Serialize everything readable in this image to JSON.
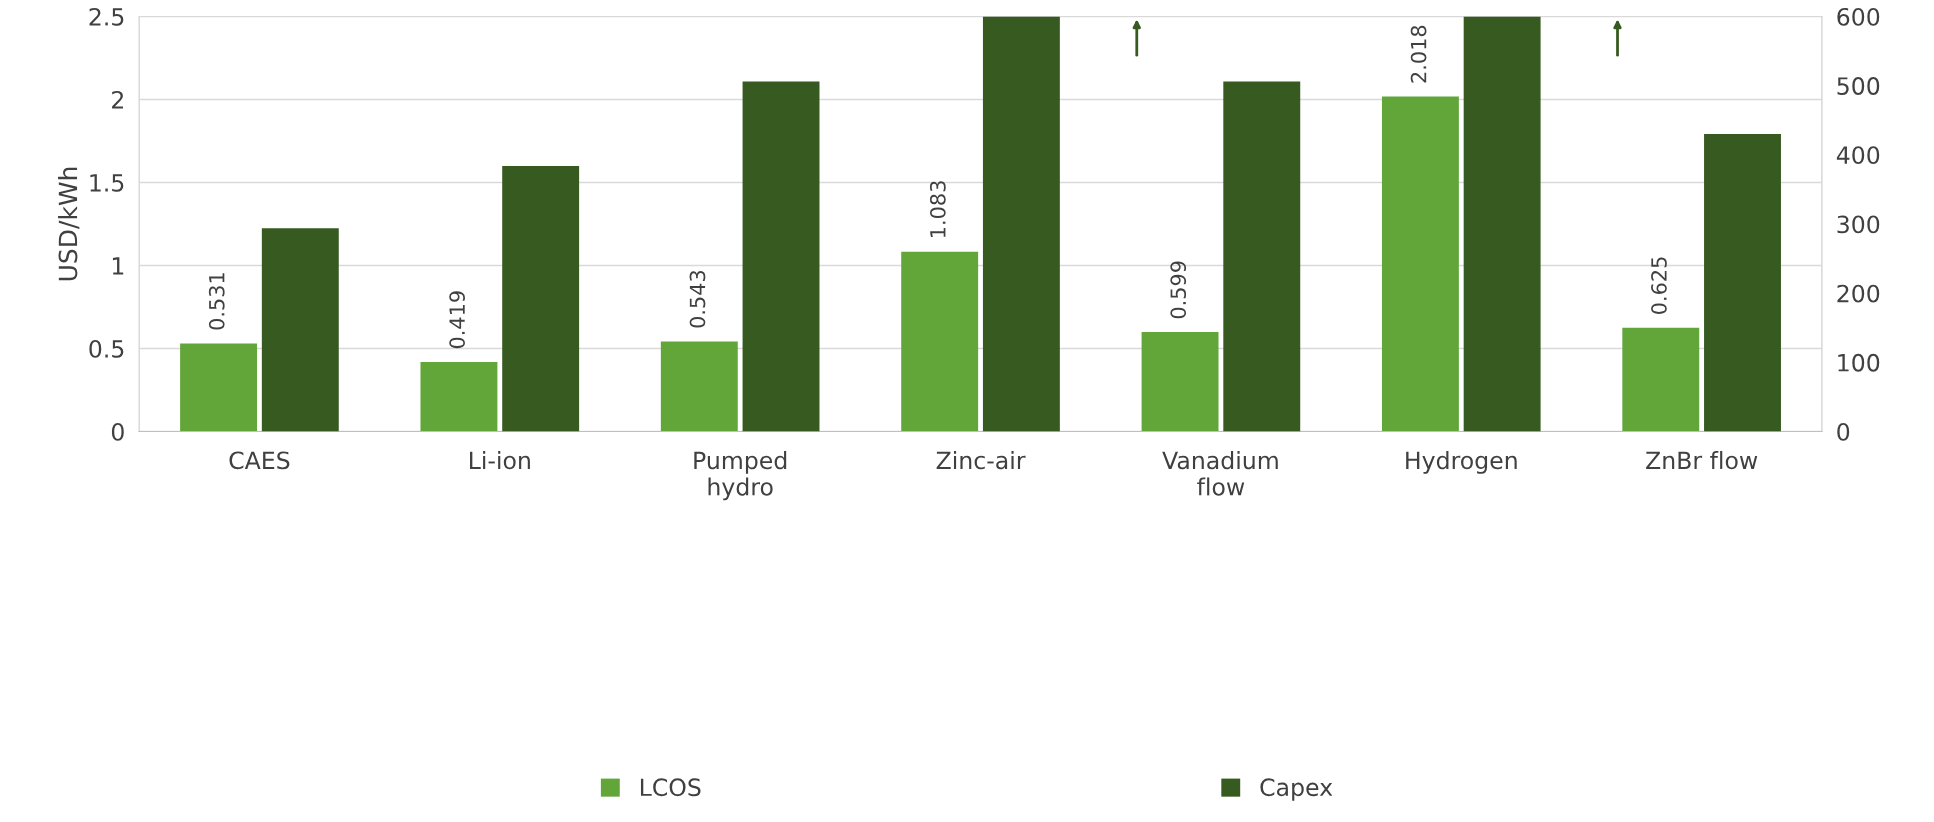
{
  "chart_data": {
    "type": "bar",
    "ylabel": "USD/kWh",
    "categories": [
      "CAES",
      "Li-ion",
      "Pumped\nhydro",
      "Zinc-air",
      "Vanadium\nflow",
      "Hydrogen",
      "ZnBr flow"
    ],
    "series": [
      {
        "name": "LCOS",
        "color": "#62a63a",
        "values": [
          0.531,
          0.419,
          0.543,
          1.083,
          0.599,
          2.018,
          0.625
        ],
        "value_labels": [
          "0.531",
          "0.419",
          "0.543",
          "1.083",
          "0.599",
          "2.018",
          "0.625"
        ]
      },
      {
        "name": "Capex",
        "color": "#375a20",
        "axis": "y2",
        "values": [
          294,
          384,
          506,
          600,
          506,
          600,
          430
        ]
      }
    ],
    "ylim": [
      0,
      2.5
    ],
    "yticks": [
      0,
      {
        "value": 0.5,
        "label": "0.5"
      },
      1,
      {
        "value": 1.5,
        "label": "1.5"
      },
      2,
      {
        "value": 2.5,
        "label": "2.5"
      }
    ],
    "y2lim": [
      0,
      600
    ],
    "y2ticks": [
      0,
      100,
      200,
      300,
      400,
      500,
      600
    ],
    "grid": "y",
    "legend": "bottom"
  }
}
